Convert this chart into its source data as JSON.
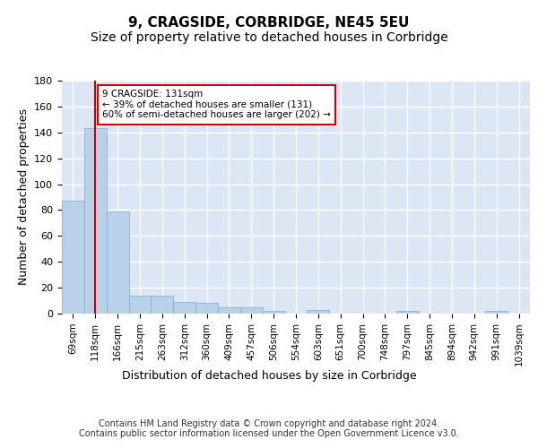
{
  "title": "9, CRAGSIDE, CORBRIDGE, NE45 5EU",
  "subtitle": "Size of property relative to detached houses in Corbridge",
  "xlabel": "Distribution of detached houses by size in Corbridge",
  "ylabel": "Number of detached properties",
  "bar_labels": [
    "69sqm",
    "118sqm",
    "166sqm",
    "215sqm",
    "263sqm",
    "312sqm",
    "360sqm",
    "409sqm",
    "457sqm",
    "506sqm",
    "554sqm",
    "603sqm",
    "651sqm",
    "700sqm",
    "748sqm",
    "797sqm",
    "845sqm",
    "894sqm",
    "942sqm",
    "991sqm",
    "1039sqm"
  ],
  "bar_values": [
    87,
    143,
    79,
    14,
    14,
    9,
    8,
    5,
    5,
    2,
    0,
    3,
    0,
    0,
    0,
    2,
    0,
    0,
    0,
    2,
    0
  ],
  "bar_color": "#b8d0e8",
  "bar_edge_color": "#7aadd4",
  "background_color": "#dce6f5",
  "grid_color": "#ffffff",
  "vline_x": 1.0,
  "vline_color": "#cc0000",
  "annotation_text": "9 CRAGSIDE: 131sqm\n← 39% of detached houses are smaller (131)\n60% of semi-detached houses are larger (202) →",
  "annotation_box_color": "#ffffff",
  "annotation_box_edge": "#cc0000",
  "ylim": [
    0,
    180
  ],
  "yticks": [
    0,
    20,
    40,
    60,
    80,
    100,
    120,
    140,
    160,
    180
  ],
  "footer_text": "Contains HM Land Registry data © Crown copyright and database right 2024.\nContains public sector information licensed under the Open Government Licence v3.0.",
  "title_fontsize": 11,
  "subtitle_fontsize": 10,
  "xlabel_fontsize": 9,
  "ylabel_fontsize": 9,
  "footer_fontsize": 7
}
